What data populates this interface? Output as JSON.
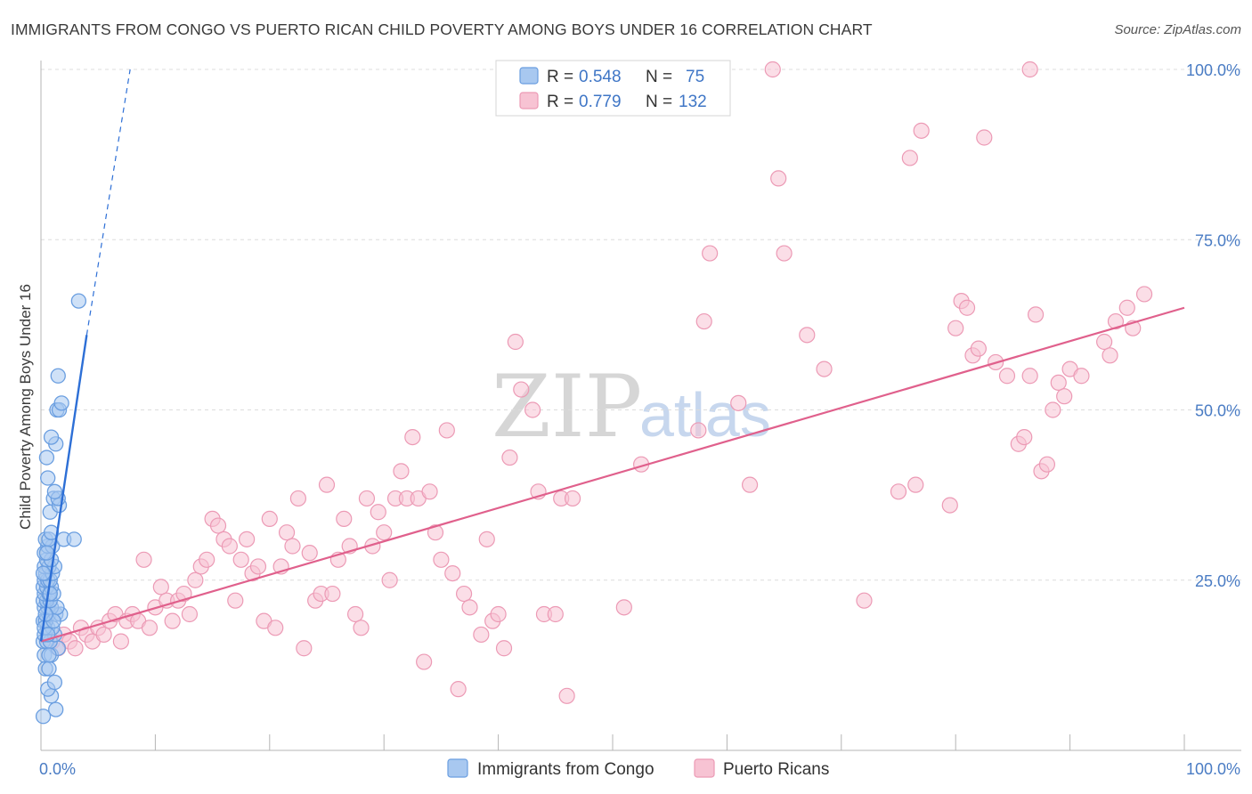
{
  "header": {
    "title": "IMMIGRANTS FROM CONGO VS PUERTO RICAN CHILD POVERTY AMONG BOYS UNDER 16 CORRELATION CHART",
    "source": "Source: ZipAtlas.com"
  },
  "watermark": {
    "zip": "ZIP",
    "atlas": "atlas"
  },
  "legend": {
    "rows": [
      {
        "r_label": "R =",
        "r_value": "0.548",
        "n_label": "N =",
        "n_value": "75",
        "color": "#7ba7e6"
      },
      {
        "r_label": "R =",
        "r_value": "0.779",
        "n_label": "N =",
        "n_value": "132",
        "color": "#f08bae"
      }
    ]
  },
  "colors": {
    "blue_fill": "#a8c8f0",
    "blue_stroke": "#6a9ee0",
    "blue_line": "#2d6fd6",
    "pink_fill": "#f7c3d3",
    "pink_stroke": "#ec9ab5",
    "pink_line": "#e0608c",
    "grid": "#dcdcdc",
    "axis": "#b5b5b5"
  },
  "chart_data": {
    "type": "scatter",
    "title": "IMMIGRANTS FROM CONGO VS PUERTO RICAN CHILD POVERTY AMONG BOYS UNDER 16 CORRELATION CHART",
    "xlabel": "",
    "ylabel": "Child Poverty Among Boys Under 16",
    "xlim": [
      0,
      100
    ],
    "ylim": [
      0,
      100
    ],
    "x_tick_labels": [
      "0.0%",
      "100.0%"
    ],
    "y_tick_labels": [
      "25.0%",
      "50.0%",
      "75.0%",
      "100.0%"
    ],
    "y_ticks": [
      25,
      50,
      75,
      100
    ],
    "series": [
      {
        "name": "Immigrants from Congo",
        "r": 0.548,
        "n": 75,
        "trend": {
          "x0": 0.0,
          "y0": 16.0,
          "x1": 4.0,
          "y1": 61.0,
          "dashed_x1": 7.8,
          "dashed_y1": 100.0
        },
        "points": [
          [
            0.2,
            5
          ],
          [
            0.9,
            8
          ],
          [
            1.3,
            6
          ],
          [
            0.6,
            9
          ],
          [
            1.2,
            10
          ],
          [
            0.4,
            12
          ],
          [
            0.7,
            12
          ],
          [
            0.3,
            14
          ],
          [
            0.9,
            14
          ],
          [
            1.5,
            15
          ],
          [
            0.2,
            16
          ],
          [
            0.5,
            16
          ],
          [
            0.8,
            16
          ],
          [
            1.2,
            17
          ],
          [
            0.3,
            17
          ],
          [
            0.6,
            18
          ],
          [
            1.0,
            18
          ],
          [
            0.2,
            19
          ],
          [
            0.4,
            19
          ],
          [
            0.7,
            20
          ],
          [
            1.3,
            20
          ],
          [
            1.7,
            20
          ],
          [
            0.3,
            21
          ],
          [
            0.6,
            21
          ],
          [
            0.9,
            21
          ],
          [
            1.4,
            21
          ],
          [
            0.2,
            22
          ],
          [
            0.5,
            22
          ],
          [
            0.8,
            22
          ],
          [
            0.3,
            23
          ],
          [
            0.7,
            23
          ],
          [
            1.1,
            23
          ],
          [
            0.2,
            24
          ],
          [
            0.5,
            24
          ],
          [
            0.9,
            24
          ],
          [
            0.3,
            25
          ],
          [
            0.6,
            25
          ],
          [
            0.8,
            25
          ],
          [
            0.4,
            26
          ],
          [
            1.0,
            26
          ],
          [
            0.3,
            27
          ],
          [
            0.7,
            27
          ],
          [
            1.2,
            27
          ],
          [
            0.5,
            28
          ],
          [
            0.9,
            28
          ],
          [
            0.3,
            29
          ],
          [
            0.6,
            30
          ],
          [
            1.0,
            30
          ],
          [
            0.4,
            31
          ],
          [
            0.7,
            31
          ],
          [
            2.0,
            31
          ],
          [
            2.9,
            31
          ],
          [
            0.8,
            35
          ],
          [
            1.1,
            37
          ],
          [
            1.6,
            36
          ],
          [
            1.5,
            37
          ],
          [
            0.6,
            40
          ],
          [
            0.5,
            43
          ],
          [
            1.3,
            45
          ],
          [
            0.9,
            46
          ],
          [
            1.4,
            50
          ],
          [
            1.6,
            50
          ],
          [
            1.8,
            51
          ],
          [
            1.5,
            55
          ],
          [
            3.3,
            66
          ],
          [
            0.3,
            18
          ],
          [
            0.6,
            17
          ],
          [
            1.1,
            19
          ],
          [
            0.4,
            20
          ],
          [
            0.8,
            23
          ],
          [
            0.2,
            26
          ],
          [
            0.5,
            29
          ],
          [
            0.9,
            32
          ],
          [
            1.2,
            38
          ],
          [
            0.7,
            14
          ]
        ]
      },
      {
        "name": "Puerto Ricans",
        "r": 0.779,
        "n": 132,
        "trend": {
          "x0": 0.0,
          "y0": 16.0,
          "x1": 100.0,
          "y1": 65.0
        },
        "points": [
          [
            1.0,
            16
          ],
          [
            1.5,
            15
          ],
          [
            2.0,
            17
          ],
          [
            2.5,
            16
          ],
          [
            3.0,
            15
          ],
          [
            3.5,
            18
          ],
          [
            4.0,
            17
          ],
          [
            4.5,
            16
          ],
          [
            5.0,
            18
          ],
          [
            5.5,
            17
          ],
          [
            6.0,
            19
          ],
          [
            6.5,
            20
          ],
          [
            7.0,
            16
          ],
          [
            7.5,
            19
          ],
          [
            8.0,
            20
          ],
          [
            8.5,
            19
          ],
          [
            9.0,
            28
          ],
          [
            9.5,
            18
          ],
          [
            10.0,
            21
          ],
          [
            10.5,
            24
          ],
          [
            11.0,
            22
          ],
          [
            11.5,
            19
          ],
          [
            12.0,
            22
          ],
          [
            12.5,
            23
          ],
          [
            13.0,
            20
          ],
          [
            13.5,
            25
          ],
          [
            14.0,
            27
          ],
          [
            14.5,
            28
          ],
          [
            15.0,
            34
          ],
          [
            15.5,
            33
          ],
          [
            16.0,
            31
          ],
          [
            16.5,
            30
          ],
          [
            17.0,
            22
          ],
          [
            17.5,
            28
          ],
          [
            18.0,
            31
          ],
          [
            18.5,
            26
          ],
          [
            19.0,
            27
          ],
          [
            19.5,
            19
          ],
          [
            20.0,
            34
          ],
          [
            20.5,
            18
          ],
          [
            21.0,
            27
          ],
          [
            21.5,
            32
          ],
          [
            22.0,
            30
          ],
          [
            22.5,
            37
          ],
          [
            23.0,
            15
          ],
          [
            23.5,
            29
          ],
          [
            24.0,
            22
          ],
          [
            24.5,
            23
          ],
          [
            25.0,
            39
          ],
          [
            25.5,
            23
          ],
          [
            26.0,
            28
          ],
          [
            26.5,
            34
          ],
          [
            27.0,
            30
          ],
          [
            27.5,
            20
          ],
          [
            28.0,
            18
          ],
          [
            28.5,
            37
          ],
          [
            29.0,
            30
          ],
          [
            29.5,
            35
          ],
          [
            30.0,
            32
          ],
          [
            30.5,
            25
          ],
          [
            31.0,
            37
          ],
          [
            31.5,
            41
          ],
          [
            32.0,
            37
          ],
          [
            32.5,
            46
          ],
          [
            33.0,
            37
          ],
          [
            33.5,
            13
          ],
          [
            34.0,
            38
          ],
          [
            34.5,
            32
          ],
          [
            35.0,
            28
          ],
          [
            35.5,
            47
          ],
          [
            36.0,
            26
          ],
          [
            36.5,
            9
          ],
          [
            37.0,
            23
          ],
          [
            37.5,
            21
          ],
          [
            38.5,
            17
          ],
          [
            39.0,
            31
          ],
          [
            39.5,
            19
          ],
          [
            40.0,
            20
          ],
          [
            40.5,
            15
          ],
          [
            41.0,
            43
          ],
          [
            41.5,
            60
          ],
          [
            42.0,
            53
          ],
          [
            43.0,
            50
          ],
          [
            43.5,
            38
          ],
          [
            44.0,
            20
          ],
          [
            45.0,
            20
          ],
          [
            45.5,
            37
          ],
          [
            46.0,
            8
          ],
          [
            46.5,
            37
          ],
          [
            51.0,
            21
          ],
          [
            52.5,
            42
          ],
          [
            57.5,
            47
          ],
          [
            58.0,
            63
          ],
          [
            58.5,
            73
          ],
          [
            61.0,
            51
          ],
          [
            62.0,
            39
          ],
          [
            64.0,
            100
          ],
          [
            64.5,
            84
          ],
          [
            65.0,
            73
          ],
          [
            67.0,
            61
          ],
          [
            68.5,
            56
          ],
          [
            72.0,
            22
          ],
          [
            75.0,
            38
          ],
          [
            76.0,
            87
          ],
          [
            76.5,
            39
          ],
          [
            77.0,
            91
          ],
          [
            79.5,
            36
          ],
          [
            80.0,
            62
          ],
          [
            80.5,
            66
          ],
          [
            81.0,
            65
          ],
          [
            81.5,
            58
          ],
          [
            82.0,
            59
          ],
          [
            82.5,
            90
          ],
          [
            83.5,
            57
          ],
          [
            84.5,
            55
          ],
          [
            85.5,
            45
          ],
          [
            86.0,
            46
          ],
          [
            86.5,
            55
          ],
          [
            87.0,
            64
          ],
          [
            87.5,
            41
          ],
          [
            88.0,
            42
          ],
          [
            88.5,
            50
          ],
          [
            89.0,
            54
          ],
          [
            89.5,
            52
          ],
          [
            90.0,
            56
          ],
          [
            91.0,
            55
          ],
          [
            93.0,
            60
          ],
          [
            93.5,
            58
          ],
          [
            94.0,
            63
          ],
          [
            95.0,
            65
          ],
          [
            95.5,
            62
          ],
          [
            96.5,
            67
          ],
          [
            86.5,
            100
          ]
        ]
      }
    ]
  },
  "bottom_legend": {
    "items": [
      {
        "label": "Immigrants from Congo"
      },
      {
        "label": "Puerto Ricans"
      }
    ]
  }
}
